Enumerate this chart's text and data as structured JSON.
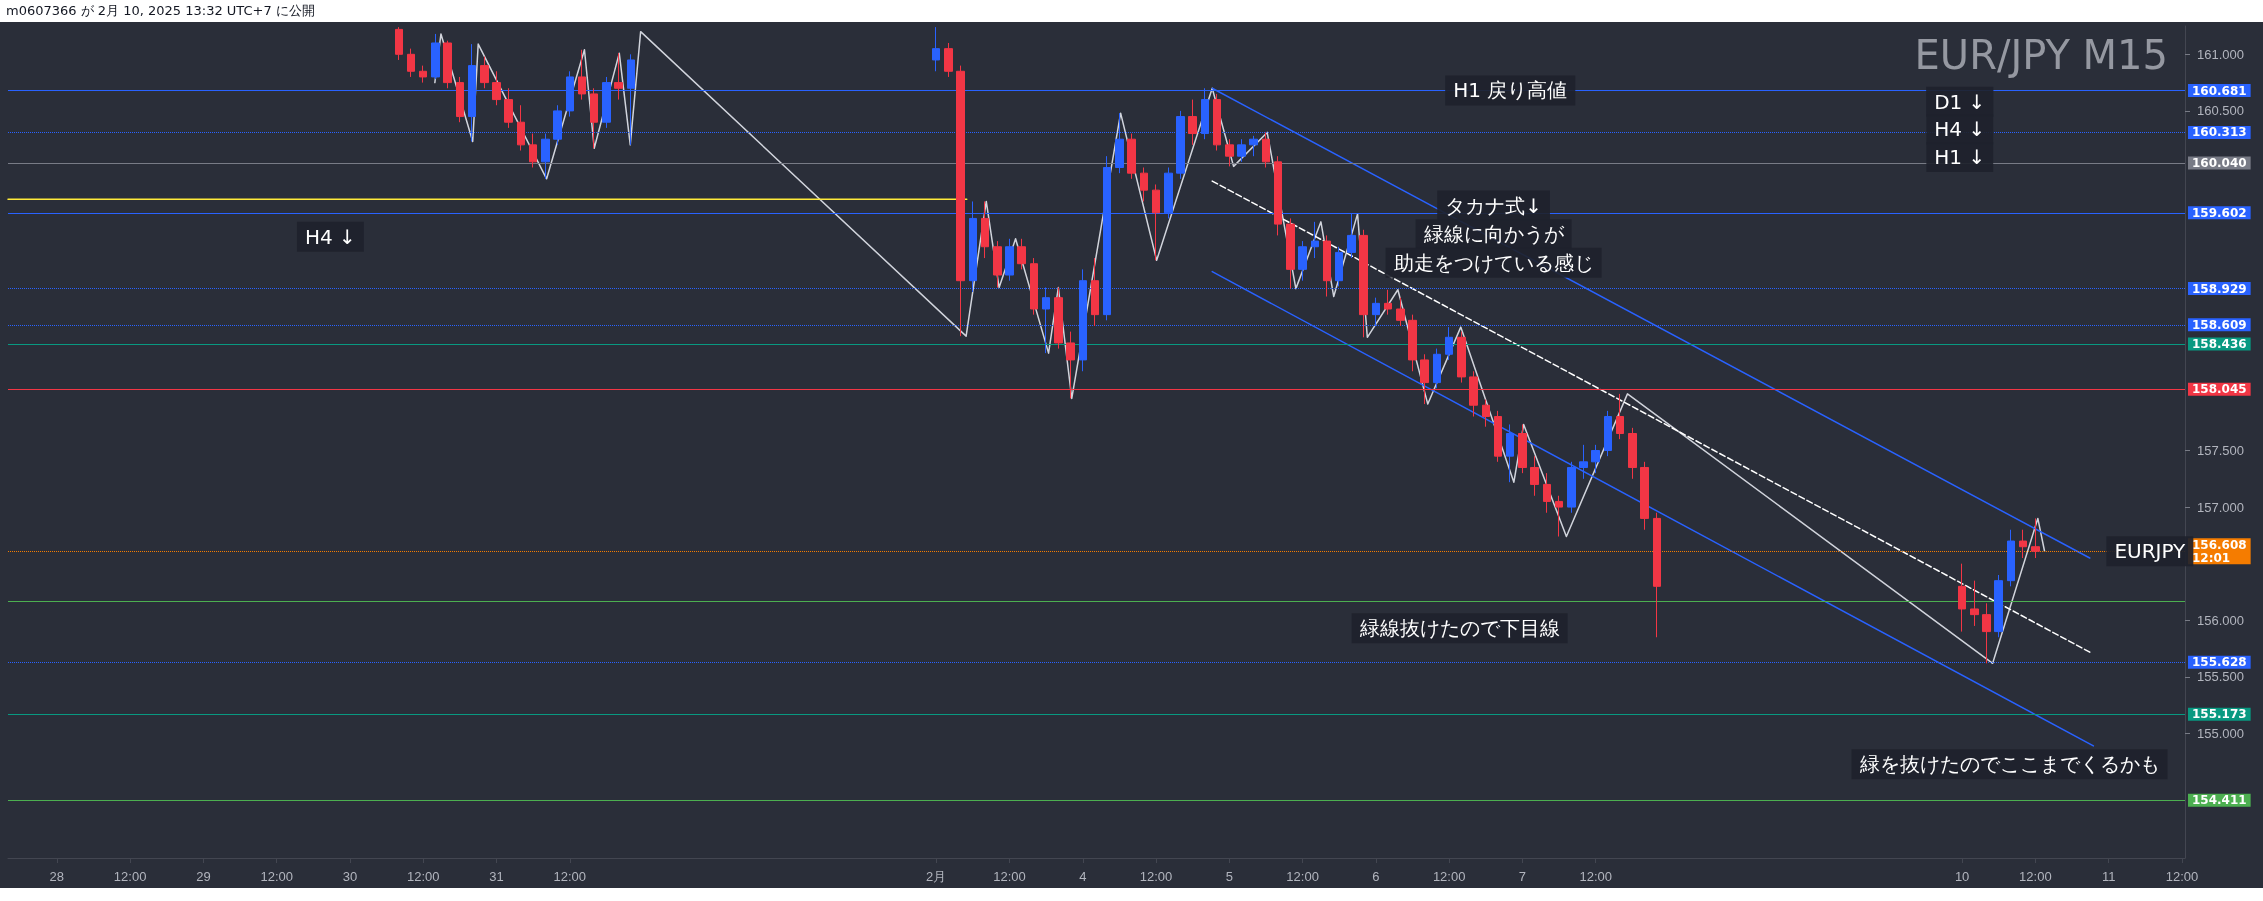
{
  "chart_data": {
    "type": "candlestick",
    "title": "EUR/JPY M15",
    "subtitle": "m0607366 が 2月 10, 2025 13:32 UTC+7 に公開",
    "marker": "none",
    "x": [
      "--01-30T08:00",
      "--01-30T10:00",
      "--01-30T12:00",
      "--01-30T14:00",
      "--01-30T16:00",
      "--01-30T18:00",
      "--01-30T20:00",
      "--01-30T22:00",
      "--01-31T00:00",
      "--01-31T02:00",
      "--01-31T04:00",
      "--01-31T06:00",
      "--01-31T08:00",
      "--01-31T10:00",
      "--01-31T12:00",
      "--01-31T14:00",
      "--01-31T16:00",
      "--01-31T18:00",
      "--01-31T20:00",
      "--01-31T22:00",
      "--02-03T00:00",
      "--02-03T02:00",
      "--02-03T04:00",
      "--02-03T06:00",
      "--02-03T08:00",
      "--02-03T10:00",
      "--02-03T12:00",
      "--02-03T14:00",
      "--02-03T16:00",
      "--02-03T18:00",
      "--02-03T20:00",
      "--02-03T22:00",
      "--02-04T00:00",
      "--02-04T02:00",
      "--02-04T04:00",
      "--02-04T06:00",
      "--02-04T08:00",
      "--02-04T10:00",
      "--02-04T12:00",
      "--02-04T14:00",
      "--02-04T16:00",
      "--02-04T18:00",
      "--02-04T20:00",
      "--02-04T22:00",
      "--02-05T00:00",
      "--02-05T02:00",
      "--02-05T04:00",
      "--02-05T06:00",
      "--02-05T08:00",
      "--02-05T10:00",
      "--02-05T12:00",
      "--02-05T14:00",
      "--02-05T16:00",
      "--02-05T18:00",
      "--02-05T20:00",
      "--02-05T22:00",
      "--02-06T00:00",
      "--02-06T02:00",
      "--02-06T04:00",
      "--02-06T06:00",
      "--02-06T08:00",
      "--02-06T10:00",
      "--02-06T12:00",
      "--02-06T14:00",
      "--02-06T16:00",
      "--02-06T18:00",
      "--02-06T20:00",
      "--02-06T22:00",
      "--02-07T00:00",
      "--02-07T02:00",
      "--02-07T04:00",
      "--02-07T06:00",
      "--02-07T08:00",
      "--02-07T10:00",
      "--02-07T12:00",
      "--02-07T14:00",
      "--02-07T16:00",
      "--02-07T18:00",
      "--02-07T20:00",
      "--02-07T22:00",
      "--02-10T00:00",
      "--02-10T02:00",
      "--02-10T04:00",
      "--02-10T06:00",
      "--02-10T08:00",
      "--02-10T10:00",
      "--02-10T12:00"
    ],
    "ohlc": [
      [
        161.22,
        161.24,
        160.95,
        161.0
      ],
      [
        161.0,
        161.05,
        160.8,
        160.85
      ],
      [
        160.85,
        160.9,
        160.75,
        160.8
      ],
      [
        160.8,
        161.18,
        160.78,
        161.1
      ],
      [
        161.1,
        161.12,
        160.7,
        160.75
      ],
      [
        160.75,
        160.8,
        160.4,
        160.45
      ],
      [
        160.45,
        161.09,
        160.23,
        160.9
      ],
      [
        160.9,
        160.98,
        160.7,
        160.75
      ],
      [
        160.75,
        160.85,
        160.55,
        160.6
      ],
      [
        160.6,
        160.7,
        160.35,
        160.4
      ],
      [
        160.4,
        160.55,
        160.15,
        160.2
      ],
      [
        160.2,
        160.3,
        160.0,
        160.05
      ],
      [
        160.05,
        160.3,
        159.9,
        160.25
      ],
      [
        160.25,
        160.55,
        160.2,
        160.5
      ],
      [
        160.5,
        160.85,
        160.45,
        160.8
      ],
      [
        160.8,
        161.04,
        160.6,
        160.65
      ],
      [
        160.65,
        160.7,
        160.17,
        160.4
      ],
      [
        160.4,
        160.8,
        160.35,
        160.75
      ],
      [
        160.75,
        161.01,
        160.6,
        160.7
      ],
      [
        160.7,
        161.0,
        160.2,
        160.95
      ],
      [
        160.95,
        161.24,
        160.85,
        161.05
      ],
      [
        161.05,
        161.1,
        160.8,
        160.85
      ],
      [
        160.85,
        160.9,
        158.51,
        159.0
      ],
      [
        159.0,
        159.7,
        158.9,
        159.55
      ],
      [
        159.55,
        159.7,
        159.2,
        159.3
      ],
      [
        159.3,
        159.35,
        158.94,
        159.05
      ],
      [
        159.05,
        159.37,
        159.0,
        159.3
      ],
      [
        159.3,
        159.37,
        159.1,
        159.15
      ],
      [
        159.15,
        159.2,
        158.7,
        158.75
      ],
      [
        158.75,
        158.94,
        158.36,
        158.85
      ],
      [
        158.85,
        158.94,
        158.4,
        158.45
      ],
      [
        158.45,
        158.55,
        157.96,
        158.3
      ],
      [
        158.3,
        159.1,
        158.2,
        159.0
      ],
      [
        159.0,
        159.2,
        158.6,
        158.7
      ],
      [
        158.7,
        160.1,
        158.65,
        160.0
      ],
      [
        160.0,
        160.48,
        159.95,
        160.25
      ],
      [
        160.25,
        160.3,
        159.9,
        159.95
      ],
      [
        159.95,
        160.0,
        159.7,
        159.8
      ],
      [
        159.8,
        159.85,
        159.18,
        159.6
      ],
      [
        159.6,
        160.0,
        159.55,
        159.95
      ],
      [
        159.95,
        160.5,
        159.9,
        160.45
      ],
      [
        160.45,
        160.6,
        160.2,
        160.3
      ],
      [
        160.3,
        160.7,
        160.25,
        160.6
      ],
      [
        160.6,
        160.65,
        160.15,
        160.2
      ],
      [
        160.2,
        160.25,
        160.01,
        160.1
      ],
      [
        160.1,
        160.25,
        160.05,
        160.2
      ],
      [
        160.2,
        160.28,
        160.1,
        160.25
      ],
      [
        160.25,
        160.31,
        160.0,
        160.05
      ],
      [
        160.05,
        160.1,
        159.4,
        159.5
      ],
      [
        159.5,
        159.55,
        158.93,
        159.1
      ],
      [
        159.1,
        159.35,
        159.0,
        159.3
      ],
      [
        159.3,
        159.52,
        159.2,
        159.35
      ],
      [
        159.35,
        159.4,
        158.86,
        159.0
      ],
      [
        159.0,
        159.3,
        158.95,
        159.25
      ],
      [
        159.25,
        159.59,
        159.2,
        159.4
      ],
      [
        159.4,
        159.45,
        158.5,
        158.7
      ],
      [
        158.7,
        158.85,
        158.6,
        158.8
      ],
      [
        158.8,
        158.92,
        158.7,
        158.75
      ],
      [
        158.75,
        158.85,
        158.6,
        158.65
      ],
      [
        158.65,
        158.7,
        158.2,
        158.3
      ],
      [
        158.3,
        158.35,
        157.91,
        158.1
      ],
      [
        158.1,
        158.4,
        158.05,
        158.35
      ],
      [
        158.35,
        158.59,
        158.3,
        158.5
      ],
      [
        158.5,
        158.55,
        158.1,
        158.15
      ],
      [
        158.15,
        158.2,
        157.8,
        157.9
      ],
      [
        157.9,
        157.95,
        157.71,
        157.8
      ],
      [
        157.8,
        157.85,
        157.4,
        157.45
      ],
      [
        157.45,
        157.73,
        157.22,
        157.65
      ],
      [
        157.65,
        157.73,
        157.3,
        157.35
      ],
      [
        157.35,
        157.45,
        157.1,
        157.2
      ],
      [
        157.2,
        157.3,
        156.95,
        157.05
      ],
      [
        157.05,
        157.1,
        156.74,
        157.0
      ],
      [
        157.0,
        157.4,
        156.95,
        157.35
      ],
      [
        157.35,
        157.55,
        157.25,
        157.4
      ],
      [
        157.4,
        157.55,
        157.3,
        157.5
      ],
      [
        157.5,
        157.85,
        157.45,
        157.8
      ],
      [
        157.8,
        158.0,
        157.6,
        157.65
      ],
      [
        157.65,
        157.7,
        157.25,
        157.35
      ],
      [
        157.35,
        157.4,
        156.8,
        156.9
      ],
      [
        156.9,
        156.95,
        155.85,
        156.3
      ],
      [
        156.3,
        156.5,
        155.9,
        156.1
      ],
      [
        156.1,
        156.35,
        155.95,
        156.05
      ],
      [
        156.05,
        156.15,
        155.62,
        155.9
      ],
      [
        155.9,
        156.4,
        155.85,
        156.35
      ],
      [
        156.35,
        156.8,
        156.3,
        156.7
      ],
      [
        156.7,
        156.8,
        156.55,
        156.65
      ],
      [
        156.65,
        156.9,
        156.55,
        156.61
      ]
    ],
    "colors": [
      "#f23645",
      "#f23645",
      "#f23645",
      "#2962ff",
      "#f23645",
      "#f23645",
      "#2962ff",
      "#f23645",
      "#f23645",
      "#f23645",
      "#f23645",
      "#f23645",
      "#2962ff",
      "#2962ff",
      "#2962ff",
      "#f23645",
      "#f23645",
      "#2962ff",
      "#f23645",
      "#2962ff",
      "#2962ff",
      "#f23645",
      "#f23645",
      "#2962ff",
      "#f23645",
      "#f23645",
      "#2962ff",
      "#f23645",
      "#f23645",
      "#2962ff",
      "#f23645",
      "#f23645",
      "#2962ff",
      "#f23645",
      "#2962ff",
      "#2962ff",
      "#f23645",
      "#f23645",
      "#f23645",
      "#2962ff",
      "#2962ff",
      "#f23645",
      "#2962ff",
      "#f23645",
      "#f23645",
      "#2962ff",
      "#2962ff",
      "#f23645",
      "#f23645",
      "#f23645",
      "#2962ff",
      "#2962ff",
      "#f23645",
      "#2962ff",
      "#2962ff",
      "#f23645",
      "#2962ff",
      "#f23645",
      "#f23645",
      "#f23645",
      "#f23645",
      "#2962ff",
      "#2962ff",
      "#f23645",
      "#f23645",
      "#f23645",
      "#f23645",
      "#2962ff",
      "#f23645",
      "#f23645",
      "#f23645",
      "#f23645",
      "#2962ff",
      "#2962ff",
      "#2962ff",
      "#2962ff",
      "#f23645",
      "#f23645",
      "#f23645",
      "#f23645",
      "#f23645",
      "#f23645",
      "#f23645",
      "#2962ff",
      "#2962ff",
      "#f23645",
      "#f23645"
    ],
    "series": [
      {
        "type": "line",
        "color": "#d1d4dc",
        "line_style": "solid",
        "x": [
          "--01-30T13:54",
          "--01-30T14:54",
          "--01-30T20:06",
          "--01-30T21:00",
          "--01-31T08:12",
          "--01-31T14:24",
          "--01-31T16:00",
          "--01-31T20:06",
          "--01-31T21:54",
          "--01-31T23:36",
          "--02-03T04:54",
          "--02-03T08:12",
          "--02-03T10:18",
          "--02-03T13:00",
          "--02-03T18:24",
          "--02-03T20:00",
          "--02-03T22:12",
          "--02-04T06:12",
          "--02-04T12:06",
          "--02-04T21:12",
          "--02-05T00:42",
          "--02-05T06:12",
          "--02-05T10:54",
          "--02-05T15:00",
          "--02-05T17:06",
          "--02-05T21:00",
          "--02-05T22:36",
          "--02-06T03:36",
          "--02-06T08:30",
          "--02-06T13:54",
          "--02-06T22:36",
          "--02-07T00:12",
          "--02-07T07:12",
          "--02-07T17:12",
          "--02-10T05:00",
          "--02-10T12:24",
          "--02-10T13:30"
        ],
        "values": [
          160.75,
          161.18,
          160.23,
          161.09,
          159.9,
          161.04,
          160.17,
          161.01,
          160.2,
          161.2,
          158.51,
          159.7,
          158.94,
          159.37,
          158.36,
          158.94,
          157.96,
          160.48,
          159.18,
          160.7,
          160.01,
          160.31,
          158.93,
          159.52,
          158.86,
          159.59,
          158.5,
          158.92,
          157.91,
          158.59,
          157.22,
          157.73,
          156.74,
          158.0,
          155.62,
          156.9,
          156.61
        ]
      },
      {
        "type": "line",
        "color": "#2962ff",
        "line_style": "solid",
        "x": [
          "--02-04T21:12",
          "--02-10T20:54"
        ],
        "values": [
          160.7,
          156.55
        ]
      },
      {
        "type": "line",
        "color": "#ffffff",
        "line_style": "dashed",
        "x": [
          "--02-04T21:12",
          "--02-10T21:12"
        ],
        "values": [
          159.88,
          155.71
        ]
      },
      {
        "type": "line",
        "color": "#2962ff",
        "line_style": "solid",
        "x": [
          "--02-04T21:12",
          "--02-10T21:30"
        ],
        "values": [
          159.08,
          154.89
        ]
      },
      {
        "type": "line",
        "color": "#ffeb3b",
        "line_style": "solid",
        "x": [
          "--01-27T16:00",
          "--02-03T05:00"
        ],
        "values": [
          159.72,
          159.72
        ]
      }
    ],
    "xlim": [
      "--01-27T16:00",
      "--02-11T12:30"
    ],
    "xticks": [
      {
        "value": "--01-28T00:00",
        "label": "28"
      },
      {
        "value": "--01-28T12:00",
        "label": "12:00"
      },
      {
        "value": "--01-29T00:00",
        "label": "29"
      },
      {
        "value": "--01-29T12:00",
        "label": "12:00"
      },
      {
        "value": "--01-30T00:00",
        "label": "30"
      },
      {
        "value": "--01-30T12:00",
        "label": "12:00"
      },
      {
        "value": "--01-31T00:00",
        "label": "31"
      },
      {
        "value": "--01-31T12:00",
        "label": "12:00"
      },
      {
        "value": "--02-03T00:00",
        "label": "2月"
      },
      {
        "value": "--02-03T12:00",
        "label": "12:00"
      },
      {
        "value": "--02-04T00:00",
        "label": "4"
      },
      {
        "value": "--02-04T12:00",
        "label": "12:00"
      },
      {
        "value": "--02-05T00:00",
        "label": "5"
      },
      {
        "value": "--02-05T12:00",
        "label": "12:00"
      },
      {
        "value": "--02-06T00:00",
        "label": "6"
      },
      {
        "value": "--02-06T12:00",
        "label": "12:00"
      },
      {
        "value": "--02-07T00:00",
        "label": "7"
      },
      {
        "value": "--02-07T12:00",
        "label": "12:00"
      },
      {
        "value": "--02-10T00:00",
        "label": "10"
      },
      {
        "value": "--02-10T12:00",
        "label": "12:00"
      },
      {
        "value": "--02-11T00:00",
        "label": "11"
      },
      {
        "value": "--02-11T12:00",
        "label": "12:00"
      }
    ],
    "ylim": [
      153.9,
      161.25
    ],
    "yticks": [
      {
        "value": 155,
        "label": "155.000"
      },
      {
        "value": 155.5,
        "label": "155.500"
      },
      {
        "value": 156,
        "label": "156.000"
      },
      {
        "value": 157,
        "label": "157.000"
      },
      {
        "value": 157.5,
        "label": "157.500"
      },
      {
        "value": 160.5,
        "label": "160.500"
      },
      {
        "value": 161,
        "label": "161.000"
      }
    ],
    "ref_lines": [
      {
        "axis": "y",
        "value": 160.681,
        "label": "160.681",
        "color": "#2962ff",
        "line_style": "solid"
      },
      {
        "axis": "y",
        "value": 160.313,
        "label": "160.313",
        "color": "#2962ff",
        "line_style": "dotted"
      },
      {
        "axis": "y",
        "value": 160.04,
        "label": "160.040",
        "color": "#787b86",
        "line_style": "solid"
      },
      {
        "axis": "y",
        "value": 159.602,
        "label": "159.602",
        "color": "#2962ff",
        "line_style": "solid"
      },
      {
        "axis": "y",
        "value": 158.929,
        "label": "158.929",
        "color": "#2962ff",
        "line_style": "dotted"
      },
      {
        "axis": "y",
        "value": 158.609,
        "label": "158.609",
        "color": "#2962ff",
        "line_style": "dotted"
      },
      {
        "axis": "y",
        "value": 158.436,
        "label": "158.436",
        "color": "#089981",
        "line_style": "solid"
      },
      {
        "axis": "y",
        "value": 158.045,
        "label": "158.045",
        "color": "#f23645",
        "line_style": "solid"
      },
      {
        "axis": "y",
        "value": 156.608,
        "label": "156.608\n12:01",
        "color": "#f57c00",
        "line_style": "dotted"
      },
      {
        "axis": "y",
        "value": 156.17,
        "color": "#4caf50",
        "line_style": "solid"
      },
      {
        "axis": "y",
        "value": 155.628,
        "label": "155.628",
        "color": "#2962ff",
        "line_style": "dotted"
      },
      {
        "axis": "y",
        "value": 155.173,
        "label": "155.173",
        "color": "#089981",
        "line_style": "solid"
      },
      {
        "axis": "y",
        "value": 154.411,
        "label": "154.411",
        "color": "#4caf50",
        "line_style": "solid"
      }
    ],
    "annotations": [
      "H4 ↓",
      {
        "text": "H1 戻り高値",
        "x": "--02-06T22:00",
        "y": 160.681
      },
      "タカナ式↓",
      "緑線に向かうが",
      "助走をつけている感じ",
      "緑線抜けたので下目線",
      "緑を抜けたのでここまでくるかも",
      "D1 ↓",
      "H4 ↓",
      "H1 ↓",
      "EURJPY"
    ]
  }
}
